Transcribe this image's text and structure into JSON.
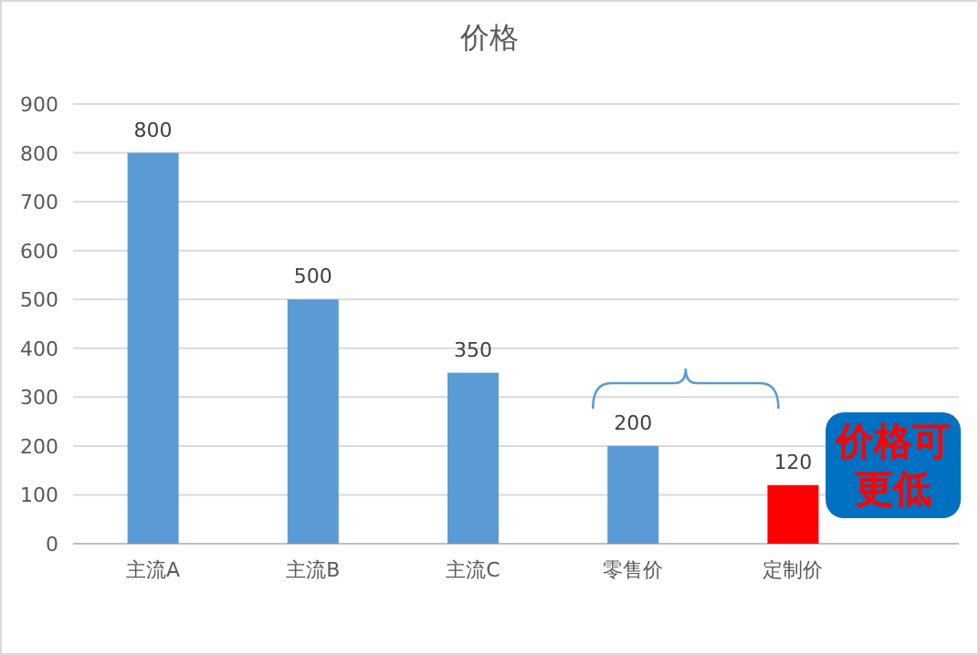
{
  "chart_data": {
    "type": "bar",
    "title": "价格",
    "categories": [
      "主流A",
      "主流B",
      "主流C",
      "零售价",
      "定制价"
    ],
    "values": [
      800,
      500,
      350,
      200,
      120
    ],
    "colors": [
      "#5b9bd5",
      "#5b9bd5",
      "#5b9bd5",
      "#5b9bd5",
      "#ff0000"
    ],
    "ylim": [
      0,
      900
    ],
    "yticks": [
      0,
      100,
      200,
      300,
      400,
      500,
      600,
      700,
      800,
      900
    ],
    "grid": "y",
    "data_labels": true,
    "annotations": [
      {
        "text": "价格可更低",
        "x": "定制价",
        "y": 120
      }
    ]
  }
}
